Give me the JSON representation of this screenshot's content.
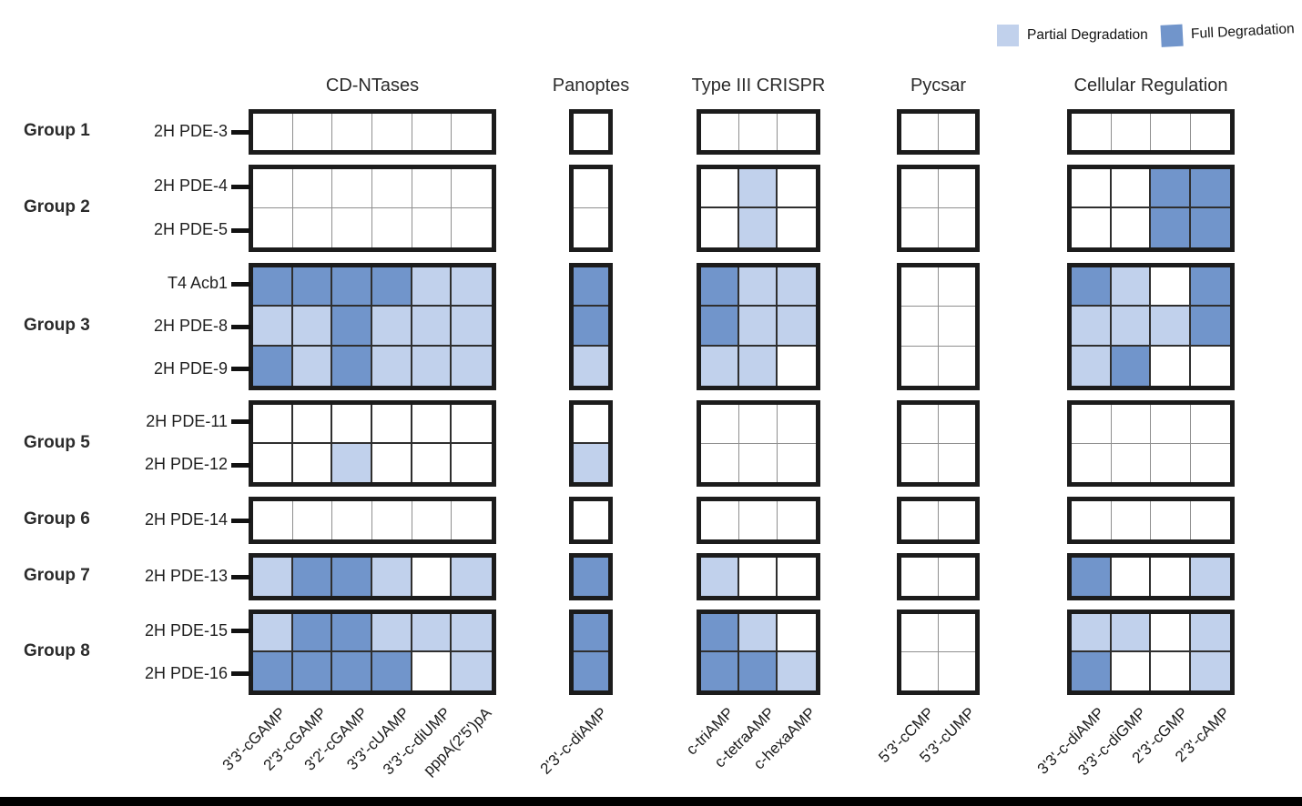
{
  "chart_data": {
    "type": "heatmap",
    "legend": [
      {
        "label": "Partial Degradation",
        "color": "#c1d1ec",
        "value": 1
      },
      {
        "label": "Full Degradation",
        "color": "#7195cb",
        "value": 2
      }
    ],
    "cell_value_meaning": {
      "0": "no degradation",
      "1": "partial degradation",
      "2": "full degradation"
    },
    "column_blocks": [
      {
        "title": "CD-NTases",
        "columns": [
          "3'3'-cGAMP",
          "2'3'-cGAMP",
          "3'2'-cGAMP",
          "3'3'-cUAMP",
          "3'3'-c-diUMP",
          "pppA(2'5')pA"
        ]
      },
      {
        "title": "Panoptes",
        "columns": [
          "2'3'-c-diAMP"
        ]
      },
      {
        "title": "Type III CRISPR",
        "columns": [
          "c-triAMP",
          "c-tetraAMP",
          "c-hexaAMP"
        ]
      },
      {
        "title": "Pycsar",
        "columns": [
          "5'3'-cCMP",
          "5'3'-cUMP"
        ]
      },
      {
        "title": "Cellular Regulation",
        "columns": [
          "3'3'-c-diAMP",
          "3'3'-c-diGMP",
          "2'3'-cGMP",
          "2'3'-cAMP"
        ]
      }
    ],
    "row_groups": [
      {
        "label": "Group 1",
        "rows": [
          {
            "label": "2H PDE-3",
            "values": [
              [
                0,
                0,
                0,
                0,
                0,
                0
              ],
              [
                0
              ],
              [
                0,
                0,
                0
              ],
              [
                0,
                0
              ],
              [
                0,
                0,
                0,
                0
              ]
            ]
          }
        ]
      },
      {
        "label": "Group 2",
        "rows": [
          {
            "label": "2H PDE-4",
            "values": [
              [
                0,
                0,
                0,
                0,
                0,
                0
              ],
              [
                0
              ],
              [
                0,
                1,
                0
              ],
              [
                0,
                0
              ],
              [
                0,
                0,
                2,
                2
              ]
            ]
          },
          {
            "label": "2H PDE-5",
            "values": [
              [
                0,
                0,
                0,
                0,
                0,
                0
              ],
              [
                0
              ],
              [
                0,
                1,
                0
              ],
              [
                0,
                0
              ],
              [
                0,
                0,
                2,
                2
              ]
            ]
          }
        ]
      },
      {
        "label": "Group 3",
        "rows": [
          {
            "label": "T4 Acb1",
            "values": [
              [
                2,
                2,
                2,
                2,
                1,
                1
              ],
              [
                2
              ],
              [
                2,
                1,
                1
              ],
              [
                0,
                0
              ],
              [
                2,
                1,
                0,
                2
              ]
            ]
          },
          {
            "label": "2H PDE-8",
            "values": [
              [
                1,
                1,
                2,
                1,
                1,
                1
              ],
              [
                2
              ],
              [
                2,
                1,
                1
              ],
              [
                0,
                0
              ],
              [
                1,
                1,
                1,
                2
              ]
            ]
          },
          {
            "label": "2H PDE-9",
            "values": [
              [
                2,
                1,
                2,
                1,
                1,
                1
              ],
              [
                1
              ],
              [
                1,
                1,
                0
              ],
              [
                0,
                0
              ],
              [
                1,
                2,
                0,
                0
              ]
            ]
          }
        ]
      },
      {
        "label": "Group 5",
        "rows": [
          {
            "label": "2H PDE-11",
            "values": [
              [
                0,
                0,
                0,
                0,
                0,
                0
              ],
              [
                0
              ],
              [
                0,
                0,
                0
              ],
              [
                0,
                0
              ],
              [
                0,
                0,
                0,
                0
              ]
            ]
          },
          {
            "label": "2H PDE-12",
            "values": [
              [
                0,
                0,
                1,
                0,
                0,
                0
              ],
              [
                1
              ],
              [
                0,
                0,
                0
              ],
              [
                0,
                0
              ],
              [
                0,
                0,
                0,
                0
              ]
            ]
          }
        ]
      },
      {
        "label": "Group 6",
        "rows": [
          {
            "label": "2H PDE-14",
            "values": [
              [
                0,
                0,
                0,
                0,
                0,
                0
              ],
              [
                0
              ],
              [
                0,
                0,
                0
              ],
              [
                0,
                0
              ],
              [
                0,
                0,
                0,
                0
              ]
            ]
          }
        ]
      },
      {
        "label": "Group 7",
        "rows": [
          {
            "label": "2H PDE-13",
            "values": [
              [
                1,
                2,
                2,
                1,
                0,
                1
              ],
              [
                2
              ],
              [
                1,
                0,
                0
              ],
              [
                0,
                0
              ],
              [
                2,
                0,
                0,
                1
              ]
            ]
          }
        ]
      },
      {
        "label": "Group 8",
        "rows": [
          {
            "label": "2H PDE-15",
            "values": [
              [
                1,
                2,
                2,
                1,
                1,
                1
              ],
              [
                2
              ],
              [
                2,
                1,
                0
              ],
              [
                0,
                0
              ],
              [
                1,
                1,
                0,
                1
              ]
            ]
          },
          {
            "label": "2H PDE-16",
            "values": [
              [
                2,
                2,
                2,
                2,
                0,
                1
              ],
              [
                2
              ],
              [
                2,
                2,
                1
              ],
              [
                0,
                0
              ],
              [
                2,
                0,
                0,
                1
              ]
            ]
          }
        ]
      }
    ]
  }
}
